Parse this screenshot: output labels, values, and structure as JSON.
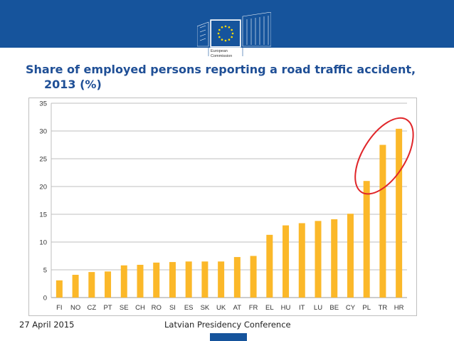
{
  "header": {
    "logo_line1": "European",
    "logo_line2": "Commission",
    "band_color": "#16549c"
  },
  "title": {
    "line1": "Share of employed persons reporting a road traffic accident,",
    "line2": "2013 (%)"
  },
  "chart_data": {
    "type": "bar",
    "title": "Share of employed persons reporting a road traffic accident, 2013 (%)",
    "xlabel": "",
    "ylabel": "",
    "ylim": [
      0,
      35
    ],
    "yticks": [
      0,
      5,
      10,
      15,
      20,
      25,
      30,
      35
    ],
    "grid": true,
    "bar_color": "#fbb829",
    "highlight_color": "#e0262a",
    "highlight_categories": [
      "PL",
      "TR",
      "HR"
    ],
    "categories": [
      "FI",
      "NO",
      "CZ",
      "PT",
      "SE",
      "CH",
      "RO",
      "SI",
      "ES",
      "SK",
      "UK",
      "AT",
      "FR",
      "EL",
      "HU",
      "IT",
      "LU",
      "BE",
      "CY",
      "PL",
      "TR",
      "HR"
    ],
    "values": [
      3.1,
      4.1,
      4.6,
      4.7,
      5.8,
      5.9,
      6.3,
      6.4,
      6.5,
      6.5,
      6.5,
      7.3,
      7.5,
      11.3,
      13.0,
      13.4,
      13.8,
      14.1,
      15.1,
      21.0,
      27.5,
      30.4
    ]
  },
  "footer": {
    "date": "27 April 2015",
    "conference": "Latvian Presidency Conference"
  }
}
